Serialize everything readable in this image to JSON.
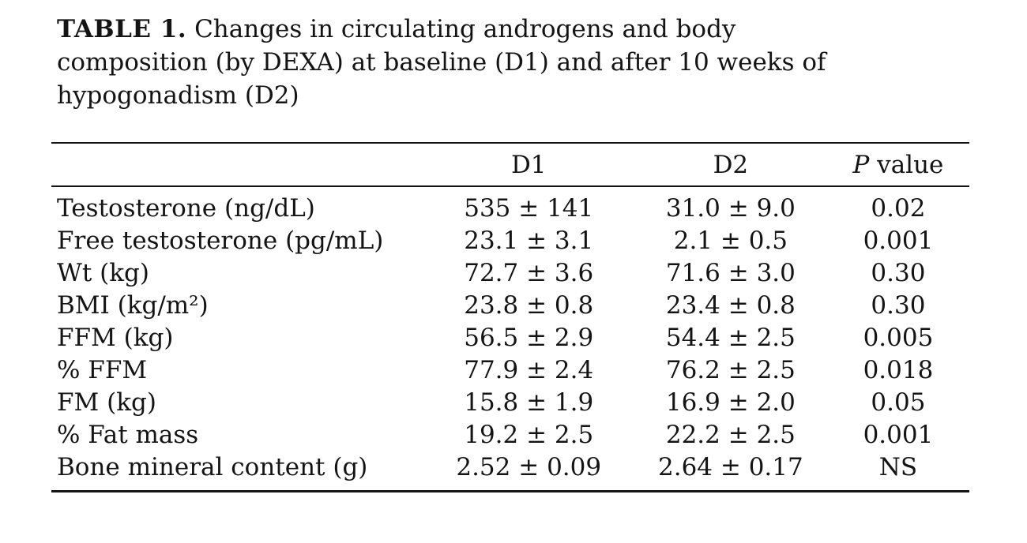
{
  "colors": {
    "background": "#ffffff",
    "text": "#141414",
    "rule": "#141414"
  },
  "caption": {
    "label": "TABLE 1.",
    "line1": " Changes in circulating androgens and body",
    "line2": "composition (by DEXA) at baseline (D1) and after 10 weeks of",
    "line3": "hypogonadism (D2)"
  },
  "table": {
    "headers": {
      "label": "",
      "d1": "D1",
      "d2": "D2",
      "p_italic": "P",
      "p_rest": " value"
    },
    "rows": [
      {
        "label": "Testosterone (ng/dL)",
        "d1": "535 ± 141",
        "d2": "31.0 ± 9.0",
        "p": "0.02"
      },
      {
        "label": "Free testosterone (pg/mL)",
        "d1": "23.1 ± 3.1",
        "d2": "2.1 ± 0.5",
        "p": "0.001"
      },
      {
        "label": "Wt (kg)",
        "d1": "72.7 ± 3.6",
        "d2": "71.6 ± 3.0",
        "p": "0.30"
      },
      {
        "label": "BMI (kg/m²)",
        "d1": "23.8 ± 0.8",
        "d2": "23.4 ± 0.8",
        "p": "0.30"
      },
      {
        "label": "FFM (kg)",
        "d1": "56.5 ± 2.9",
        "d2": "54.4 ± 2.5",
        "p": "0.005"
      },
      {
        "label": "% FFM",
        "d1": "77.9 ± 2.4",
        "d2": "76.2 ± 2.5",
        "p": "0.018"
      },
      {
        "label": "FM (kg)",
        "d1": "15.8 ± 1.9",
        "d2": "16.9 ± 2.0",
        "p": "0.05"
      },
      {
        "label": "% Fat mass",
        "d1": "19.2 ± 2.5",
        "d2": "22.2 ± 2.5",
        "p": "0.001"
      },
      {
        "label": "Bone mineral content (g)",
        "d1": "2.52 ± 0.09",
        "d2": "2.64 ± 0.17",
        "p": "NS"
      }
    ]
  }
}
